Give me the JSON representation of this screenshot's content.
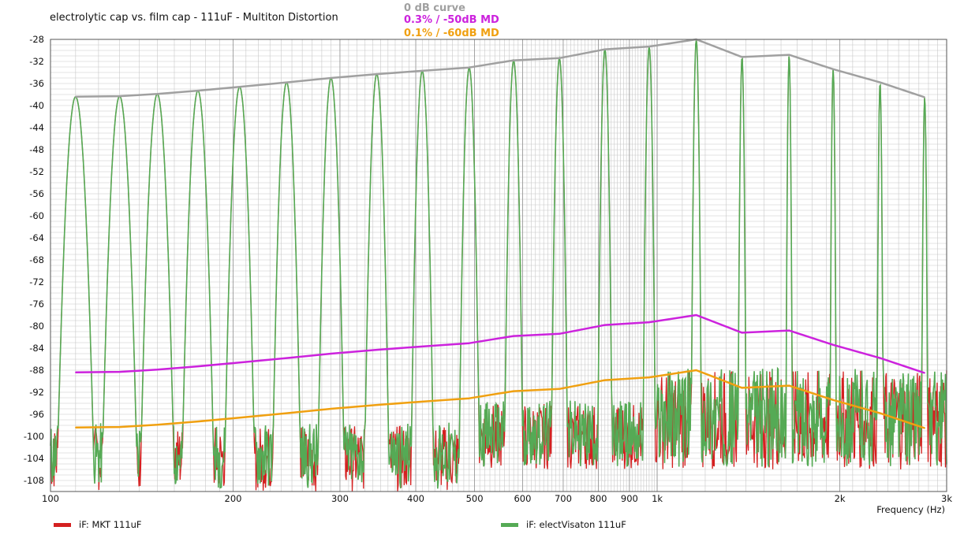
{
  "chart_data": {
    "type": "line",
    "title": "electrolytic cap vs. film cap - 111uF - Multiton Distortion",
    "xlabel": "Frequency  (Hz)",
    "ylabel": "",
    "xscale": "log",
    "xlim": [
      100,
      3000
    ],
    "ylim": [
      -110,
      -28
    ],
    "grid": true,
    "y_ticks": [
      -28,
      -32,
      -36,
      -40,
      -44,
      -48,
      -52,
      -56,
      -60,
      -64,
      -68,
      -72,
      -76,
      -80,
      -84,
      -88,
      -92,
      -96,
      -100,
      -104,
      -108
    ],
    "x_ticks": [
      {
        "value": 100,
        "label": "100"
      },
      {
        "value": 200,
        "label": "200"
      },
      {
        "value": 300,
        "label": "300"
      },
      {
        "value": 400,
        "label": "400"
      },
      {
        "value": 500,
        "label": "500"
      },
      {
        "value": 600,
        "label": "600"
      },
      {
        "value": 700,
        "label": "700"
      },
      {
        "value": 800,
        "label": "800"
      },
      {
        "value": 900,
        "label": "900"
      },
      {
        "value": 1000,
        "label": "1k"
      },
      {
        "value": 2000,
        "label": "2k"
      },
      {
        "value": 3000,
        "label": "3k"
      }
    ],
    "top_legend": [
      {
        "name": "0 dB curve",
        "color": "#a0a0a0"
      },
      {
        "name": "0.3% / -50dB MD",
        "color": "#cc22dd"
      },
      {
        "name": "0.1% / -60dB MD",
        "color": "#f0a010"
      }
    ],
    "bottom_legend": [
      {
        "name": "iF: MKT 111uF",
        "color": "#d42020"
      },
      {
        "name": "iF: electVisaton 111uF",
        "color": "#55aa55"
      }
    ],
    "tone_frequencies": [
      110,
      130,
      150,
      175,
      205,
      245,
      290,
      345,
      410,
      490,
      580,
      690,
      820,
      970,
      1160,
      1380,
      1650,
      1950,
      2330,
      2760
    ],
    "series": [
      {
        "name": "0 dB curve",
        "color": "#a0a0a0",
        "x": [
          110,
          130,
          150,
          175,
          205,
          245,
          290,
          345,
          410,
          490,
          580,
          690,
          820,
          970,
          1160,
          1380,
          1650,
          1950,
          2330,
          2760
        ],
        "y": [
          -38.4,
          -38.3,
          -37.9,
          -37.3,
          -36.6,
          -35.8,
          -35.0,
          -34.3,
          -33.7,
          -33.1,
          -31.8,
          -31.4,
          -29.8,
          -29.3,
          -28.0,
          -31.2,
          -30.8,
          -33.4,
          -35.8,
          -38.5
        ]
      },
      {
        "name": "0.3% / -50dB MD",
        "color": "#cc22dd",
        "x": [
          110,
          130,
          150,
          175,
          205,
          245,
          290,
          345,
          410,
          490,
          580,
          690,
          820,
          970,
          1160,
          1380,
          1650,
          1950,
          2330,
          2760
        ],
        "y": [
          -88.4,
          -88.3,
          -87.9,
          -87.3,
          -86.6,
          -85.8,
          -85.0,
          -84.3,
          -83.7,
          -83.1,
          -81.8,
          -81.4,
          -79.8,
          -79.3,
          -78.0,
          -81.2,
          -80.8,
          -83.4,
          -85.8,
          -88.5
        ]
      },
      {
        "name": "0.1% / -60dB MD",
        "color": "#f0a010",
        "x": [
          110,
          130,
          150,
          175,
          205,
          245,
          290,
          345,
          410,
          490,
          580,
          690,
          820,
          970,
          1160,
          1380,
          1650,
          1950,
          2330,
          2760
        ],
        "y": [
          -98.4,
          -98.3,
          -97.9,
          -97.3,
          -96.6,
          -95.8,
          -95.0,
          -94.3,
          -93.7,
          -93.1,
          -91.8,
          -91.4,
          -89.8,
          -89.3,
          -88.0,
          -91.2,
          -90.8,
          -93.4,
          -95.8,
          -98.5
        ]
      }
    ]
  }
}
